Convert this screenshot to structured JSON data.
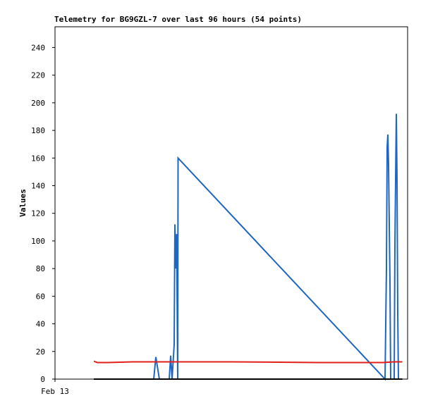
{
  "chart_data": {
    "type": "line",
    "title": "Telemetry for BG9GZL-7 over last 96 hours (54 points)",
    "y_label": "Values",
    "xlim": [
      0,
      100
    ],
    "xticks": [
      {
        "value": 0,
        "label": "Feb 13"
      }
    ],
    "ylim": [
      0,
      255
    ],
    "yticks": [
      0,
      20,
      40,
      60,
      80,
      100,
      120,
      140,
      160,
      180,
      200,
      220,
      240
    ],
    "grid": false,
    "series": [
      {
        "color": "#1f66c1",
        "x": [
          11,
          28,
          28.6,
          29.6,
          32.4,
          32.8,
          33.2,
          33.8,
          34.0,
          34.3,
          34.5,
          34.8,
          34.9,
          36,
          93.6,
          94,
          94.2,
          94.4,
          94.6,
          94.8,
          95,
          95.2,
          96.2,
          96.4,
          96.8,
          97,
          97.2,
          97.4
        ],
        "values": [
          0,
          0,
          16,
          0,
          0,
          17,
          0,
          25,
          112,
          80,
          105,
          0,
          160,
          157,
          0,
          80,
          168,
          177,
          155,
          112,
          70,
          0,
          0,
          97,
          192,
          145,
          48,
          0
        ]
      },
      {
        "color": "#e0201b",
        "x": [
          11,
          12,
          15,
          22,
          50,
          75,
          80,
          93,
          96,
          98.5
        ],
        "values": [
          13,
          12,
          12,
          12.5,
          12.5,
          12,
          12,
          12,
          12.5,
          12.5
        ]
      },
      {
        "color": "#000000",
        "x": [
          11,
          98.5
        ],
        "values": [
          0,
          0
        ]
      }
    ]
  }
}
